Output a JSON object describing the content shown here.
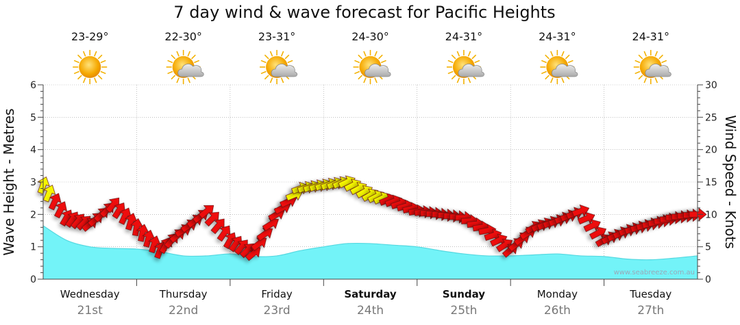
{
  "chart_data": {
    "type": "area",
    "title": "7 day wind & wave forecast for Pacific Heights",
    "y_left_label": "Wave Height - Metres",
    "y_right_label": "Wind Speed - Knots",
    "y_left_range": [
      0,
      6
    ],
    "y_right_range": [
      0,
      30
    ],
    "y_left_ticks": [
      "0",
      "1",
      "2",
      "3",
      "4",
      "5",
      "6"
    ],
    "y_right_ticks": [
      "0",
      "5",
      "10",
      "15",
      "20",
      "25",
      "30"
    ],
    "watermark": "www.seabreeze.com.au",
    "days": [
      {
        "name": "Wednesday",
        "date": "21st",
        "temp": "23-29°",
        "icon": "sun-icon",
        "weekend": false
      },
      {
        "name": "Thursday",
        "date": "22nd",
        "temp": "22-30°",
        "icon": "sun-cloud-icon",
        "weekend": false
      },
      {
        "name": "Friday",
        "date": "23rd",
        "temp": "23-31°",
        "icon": "sun-cloud-icon",
        "weekend": false
      },
      {
        "name": "Saturday",
        "date": "24th",
        "temp": "24-30°",
        "icon": "sun-cloud-icon",
        "weekend": true
      },
      {
        "name": "Sunday",
        "date": "25th",
        "temp": "24-31°",
        "icon": "sun-cloud-icon",
        "weekend": true
      },
      {
        "name": "Monday",
        "date": "26th",
        "temp": "24-31°",
        "icon": "sun-cloud-icon",
        "weekend": false
      },
      {
        "name": "Tuesday",
        "date": "27th",
        "temp": "24-31°",
        "icon": "sun-cloud-icon",
        "weekend": false
      }
    ],
    "x_unit": "days from start of Wednesday 21st",
    "wave_height_m": {
      "x": [
        0.0,
        0.25,
        0.5,
        0.75,
        1.0,
        1.25,
        1.5,
        1.75,
        2.0,
        2.25,
        2.5,
        2.75,
        3.0,
        3.25,
        3.5,
        3.75,
        4.0,
        4.25,
        4.5,
        4.75,
        5.0,
        5.25,
        5.5,
        5.75,
        6.0,
        6.25,
        6.5,
        6.75,
        7.0
      ],
      "y": [
        1.65,
        1.2,
        1.0,
        0.95,
        0.93,
        0.85,
        0.72,
        0.72,
        0.78,
        0.7,
        0.72,
        0.88,
        1.0,
        1.1,
        1.1,
        1.05,
        1.0,
        0.88,
        0.78,
        0.72,
        0.72,
        0.75,
        0.78,
        0.72,
        0.7,
        0.62,
        0.6,
        0.65,
        0.72
      ]
    },
    "wind_speed_kn": {
      "x": [
        0.0,
        0.25,
        0.5,
        0.75,
        1.0,
        1.25,
        1.5,
        1.75,
        2.0,
        2.25,
        2.5,
        2.75,
        3.0,
        3.25,
        3.5,
        3.75,
        4.0,
        4.25,
        4.5,
        4.75,
        5.0,
        5.25,
        5.5,
        5.75,
        6.0,
        6.25,
        6.5,
        6.75,
        7.0
      ],
      "y": [
        14.5,
        9.5,
        8.5,
        11.5,
        8,
        4.5,
        7.5,
        10.5,
        6,
        4,
        10,
        14,
        14.5,
        15,
        13,
        12,
        10.5,
        10,
        9.5,
        7.5,
        4.5,
        8,
        9,
        10.5,
        6,
        7.5,
        8.5,
        9.5,
        10
      ],
      "arrow_colors": {
        "light": "#f5f500",
        "strong": "#ee1111"
      },
      "arrow_direction_deg": [
        200,
        210,
        230,
        220,
        190,
        200,
        240,
        230,
        210,
        230,
        240,
        250,
        250,
        245,
        240,
        250,
        260,
        270,
        270,
        260,
        230,
        240,
        250,
        250,
        240,
        250,
        260,
        270,
        270
      ]
    },
    "colors": {
      "wave_fill": "#73f3f8",
      "wave_line": "#55d8e0",
      "grid": "#999999"
    }
  }
}
